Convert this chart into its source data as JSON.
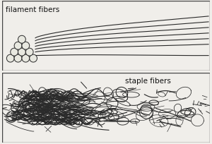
{
  "background_color": "#f0eeea",
  "panel_bg": "#f0eeea",
  "border_color": "#444444",
  "top_label": "filament fibers",
  "bottom_label": "staple fibers",
  "label_fontsize": 7.5,
  "label_color": "#111111",
  "line_color": "#2a2a2a",
  "circle_facecolor": "#e8e8e0",
  "circle_edgecolor": "#2a2a2a",
  "fig_width": 3.0,
  "fig_height": 2.05,
  "dpi": 100
}
